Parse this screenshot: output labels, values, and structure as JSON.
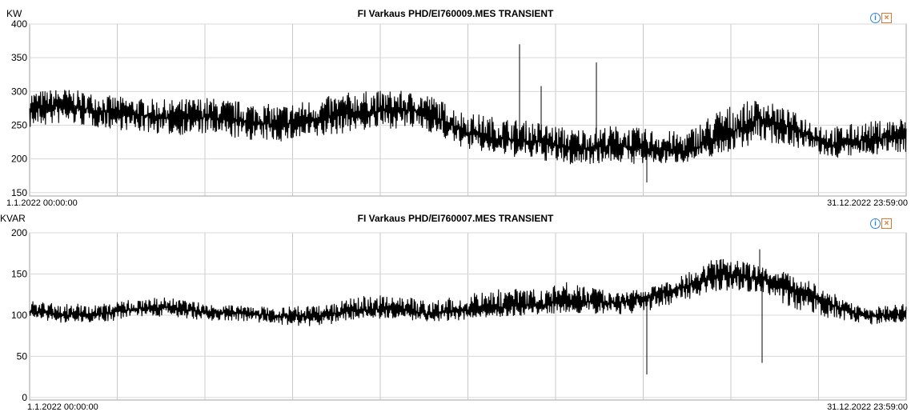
{
  "charts": [
    {
      "unit": "KW",
      "title": "FI Varkaus PHD/EI760009.MES TRANSIENT",
      "x_start": "1.1.2022 00:00:00",
      "x_end": "31.12.2022 23:59:00",
      "info_icon": "info-icon",
      "close_icon": "close-icon"
    },
    {
      "unit": "KVAR",
      "title": "FI Varkaus PHD/EI760007.MES TRANSIENT",
      "x_start": "1.1.2022 00:00:00",
      "x_end": "31.12.2022 23:59:00",
      "info_icon": "info-icon",
      "close_icon": "close-icon"
    }
  ],
  "chart_data": [
    {
      "type": "line",
      "title": "FI Varkaus PHD/EI760009.MES TRANSIENT",
      "ylabel": "KW",
      "ylim": [
        145,
        400
      ],
      "yticks": [
        150,
        200,
        250,
        300,
        350,
        400
      ],
      "xlim": [
        "2022-01-01 00:00",
        "2022-12-31 23:59"
      ],
      "x": [
        "2022-01-01",
        "2022-01-15",
        "2022-02-01",
        "2022-02-15",
        "2022-03-01",
        "2022-03-15",
        "2022-04-01",
        "2022-04-15",
        "2022-05-01",
        "2022-05-15",
        "2022-06-01",
        "2022-06-15",
        "2022-07-01",
        "2022-07-15",
        "2022-08-01",
        "2022-08-15",
        "2022-09-01",
        "2022-09-15",
        "2022-10-01",
        "2022-10-15",
        "2022-11-01",
        "2022-11-15",
        "2022-12-01",
        "2022-12-15",
        "2022-12-31"
      ],
      "series": [
        {
          "values": [
            275,
            280,
            270,
            265,
            260,
            262,
            255,
            250,
            258,
            268,
            272,
            270,
            240,
            230,
            225,
            215,
            220,
            215,
            210,
            230,
            260,
            245,
            220,
            228,
            235
          ]
        }
      ],
      "envelope": {
        "upper": [
          300,
          305,
          295,
          290,
          288,
          292,
          285,
          280,
          290,
          300,
          302,
          298,
          270,
          262,
          255,
          245,
          250,
          245,
          240,
          275,
          290,
          270,
          248,
          255,
          262
        ],
        "lower": [
          245,
          252,
          245,
          240,
          235,
          236,
          228,
          225,
          230,
          240,
          245,
          242,
          215,
          205,
          198,
          190,
          195,
          190,
          195,
          205,
          225,
          218,
          200,
          205,
          210
        ]
      },
      "spikes": [
        {
          "x": "2022-07-24",
          "value": 370
        },
        {
          "x": "2022-08-02",
          "value": 308
        },
        {
          "x": "2022-08-25",
          "value": 343
        },
        {
          "x": "2022-09-01",
          "value": 240
        },
        {
          "x": "2022-09-15",
          "value": 165
        }
      ]
    },
    {
      "type": "line",
      "title": "FI Varkaus PHD/EI760007.MES TRANSIENT",
      "ylabel": "KVAR",
      "ylim": [
        -3,
        200
      ],
      "yticks": [
        0,
        50,
        100,
        150,
        200
      ],
      "xlim": [
        "2022-01-01 00:00",
        "2022-12-31 23:59"
      ],
      "x": [
        "2022-01-01",
        "2022-01-15",
        "2022-02-01",
        "2022-02-15",
        "2022-03-01",
        "2022-03-15",
        "2022-04-01",
        "2022-04-15",
        "2022-05-01",
        "2022-05-15",
        "2022-06-01",
        "2022-06-15",
        "2022-07-01",
        "2022-07-15",
        "2022-08-01",
        "2022-08-15",
        "2022-09-01",
        "2022-09-15",
        "2022-10-01",
        "2022-10-15",
        "2022-11-01",
        "2022-11-15",
        "2022-12-01",
        "2022-12-15",
        "2022-12-31"
      ],
      "series": [
        {
          "values": [
            105,
            100,
            102,
            108,
            110,
            103,
            102,
            99,
            98,
            106,
            108,
            102,
            105,
            110,
            112,
            118,
            115,
            122,
            135,
            150,
            145,
            132,
            112,
            98,
            102
          ]
        }
      ],
      "envelope": {
        "upper": [
          118,
          114,
          114,
          120,
          122,
          114,
          112,
          110,
          112,
          122,
          126,
          118,
          125,
          132,
          132,
          142,
          128,
          132,
          150,
          172,
          160,
          150,
          130,
          108,
          115
        ],
        "lower": [
          96,
          90,
          92,
          96,
          98,
          93,
          92,
          88,
          86,
          94,
          96,
          92,
          94,
          98,
          100,
          102,
          100,
          104,
          118,
          130,
          128,
          108,
          95,
          88,
          92
        ]
      },
      "spikes": [
        {
          "x": "2022-09-15",
          "value": 28
        },
        {
          "x": "2022-11-01",
          "value": 180
        },
        {
          "x": "2022-11-02",
          "value": 42
        }
      ]
    }
  ]
}
